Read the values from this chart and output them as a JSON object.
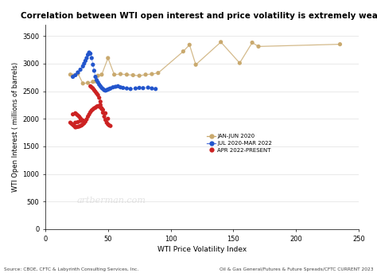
{
  "title": "Correlation between WTI open interest and price volatility is extremely weak",
  "xlabel": "WTI Price Volatility Index",
  "ylabel": "WTI Open Interest ( millions of barrels)",
  "xlim": [
    0,
    250
  ],
  "ylim": [
    0,
    3700
  ],
  "xticks": [
    0,
    50,
    100,
    150,
    200,
    250
  ],
  "yticks": [
    0,
    500,
    1000,
    1500,
    2000,
    2500,
    3000,
    3500
  ],
  "background_color": "#ffffff",
  "watermark": "artberman.com",
  "source_left": "Source: CBOE, CFTC & Labyrinth Consulting Services, Inc.",
  "source_right": "Oil & Gas General/Futures & Future Spreads/CFTC CURRENT 2023",
  "series_tan": {
    "label": "JAN-JUN 2020",
    "color": "#c9a96e",
    "line_color": "#c9a96e",
    "x": [
      20,
      22,
      26,
      30,
      34,
      38,
      40,
      42,
      45,
      50,
      55,
      60,
      65,
      70,
      75,
      80,
      85,
      90,
      110,
      115,
      120,
      140,
      155,
      165,
      170,
      235
    ],
    "y": [
      2800,
      2780,
      2820,
      2640,
      2650,
      2670,
      2680,
      2780,
      2800,
      3100,
      2800,
      2810,
      2800,
      2790,
      2780,
      2800,
      2810,
      2830,
      3220,
      3340,
      2980,
      3390,
      3010,
      3380,
      3310,
      3350
    ]
  },
  "series_blue": {
    "label": "JUL 2020-MAR 2022",
    "color": "#2255cc",
    "line_color": "#5577dd",
    "x": [
      22,
      24,
      26,
      28,
      30,
      31,
      32,
      33,
      34,
      35,
      36,
      37,
      38,
      39,
      40,
      41,
      42,
      43,
      44,
      45,
      46,
      47,
      48,
      49,
      50,
      51,
      52,
      54,
      56,
      58,
      60,
      62,
      65,
      68,
      72,
      75,
      78,
      82,
      85,
      88
    ],
    "y": [
      2760,
      2790,
      2840,
      2890,
      2950,
      3000,
      3050,
      3100,
      3160,
      3200,
      3180,
      3100,
      2980,
      2870,
      2760,
      2700,
      2660,
      2620,
      2590,
      2560,
      2540,
      2520,
      2510,
      2520,
      2530,
      2540,
      2550,
      2570,
      2580,
      2590,
      2570,
      2560,
      2550,
      2540,
      2550,
      2560,
      2555,
      2565,
      2550,
      2540
    ]
  },
  "series_red": {
    "label": "APR 2022-PRESENT",
    "color": "#cc2222",
    "x": [
      36,
      37,
      38,
      39,
      40,
      41,
      42,
      43,
      44,
      44,
      45,
      46,
      47,
      48,
      49,
      50,
      51,
      52,
      50,
      48,
      46,
      45,
      44,
      43,
      42,
      41,
      40,
      39,
      38,
      37,
      36,
      35,
      34,
      33,
      32,
      31,
      30,
      29,
      28,
      27,
      26,
      25,
      24,
      23,
      22,
      21,
      20,
      22,
      24,
      25,
      26,
      27,
      28,
      29,
      30,
      28,
      26,
      24
    ],
    "y": [
      2590,
      2570,
      2550,
      2520,
      2490,
      2460,
      2430,
      2380,
      2310,
      2250,
      2180,
      2110,
      2040,
      1980,
      1930,
      1900,
      1880,
      1870,
      2000,
      2100,
      2160,
      2190,
      2210,
      2220,
      2230,
      2220,
      2200,
      2190,
      2170,
      2150,
      2120,
      2080,
      2040,
      1990,
      1950,
      1920,
      1900,
      1880,
      1870,
      1860,
      1855,
      1850,
      1845,
      1870,
      1890,
      1910,
      1930,
      2080,
      2100,
      2080,
      2060,
      2040,
      2010,
      1980,
      1970,
      1960,
      1940,
      1930
    ]
  }
}
